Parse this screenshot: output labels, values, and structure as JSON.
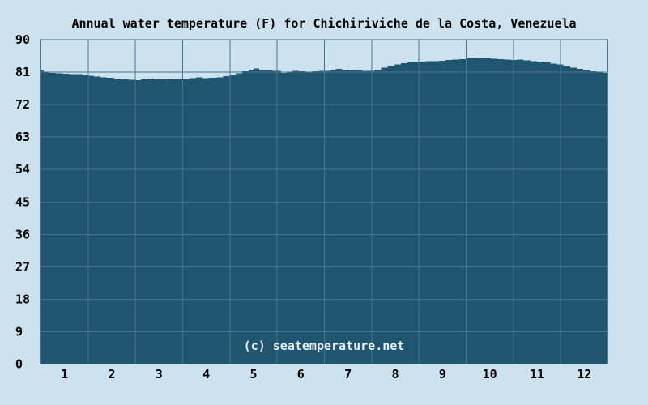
{
  "chart_data": {
    "type": "area",
    "title": "Annual water temperature (F) for Chichiriviche de la Costa, Venezuela",
    "watermark": "(c) seatemperature.net",
    "xlabel": "",
    "ylabel": "",
    "x_tick_labels": [
      "1",
      "2",
      "3",
      "4",
      "5",
      "6",
      "7",
      "8",
      "9",
      "10",
      "11",
      "12"
    ],
    "y_ticks": [
      0,
      9,
      18,
      27,
      36,
      45,
      54,
      63,
      72,
      81,
      90
    ],
    "xlim_months": [
      0,
      12
    ],
    "ylim": [
      0,
      90
    ],
    "grid": true,
    "legend": false,
    "series": [
      {
        "name": "Water temperature (F)",
        "points": [
          [
            0.0,
            81.5
          ],
          [
            0.06,
            81.0
          ],
          [
            0.18,
            80.8
          ],
          [
            0.32,
            80.7
          ],
          [
            0.46,
            80.6
          ],
          [
            0.6,
            80.5
          ],
          [
            0.74,
            80.4
          ],
          [
            0.88,
            80.2
          ],
          [
            1.0,
            80.0
          ],
          [
            1.12,
            79.8
          ],
          [
            1.26,
            79.6
          ],
          [
            1.4,
            79.4
          ],
          [
            1.55,
            79.2
          ],
          [
            1.7,
            79.0
          ],
          [
            1.85,
            78.9
          ],
          [
            2.0,
            78.8
          ],
          [
            2.12,
            79.0
          ],
          [
            2.26,
            79.2
          ],
          [
            2.4,
            79.0
          ],
          [
            2.54,
            79.0
          ],
          [
            2.68,
            79.1
          ],
          [
            2.82,
            79.0
          ],
          [
            3.0,
            79.0
          ],
          [
            3.14,
            79.3
          ],
          [
            3.28,
            79.5
          ],
          [
            3.42,
            79.3
          ],
          [
            3.56,
            79.4
          ],
          [
            3.72,
            79.6
          ],
          [
            3.86,
            79.9
          ],
          [
            4.0,
            80.2
          ],
          [
            4.12,
            80.7
          ],
          [
            4.26,
            81.2
          ],
          [
            4.4,
            81.7
          ],
          [
            4.5,
            82.0
          ],
          [
            4.62,
            81.7
          ],
          [
            4.76,
            81.5
          ],
          [
            4.9,
            81.4
          ],
          [
            5.0,
            81.3
          ],
          [
            5.08,
            80.8
          ],
          [
            5.2,
            81.0
          ],
          [
            5.32,
            81.3
          ],
          [
            5.46,
            81.2
          ],
          [
            5.6,
            81.1
          ],
          [
            5.74,
            81.2
          ],
          [
            5.88,
            81.3
          ],
          [
            6.0,
            81.4
          ],
          [
            6.12,
            81.7
          ],
          [
            6.24,
            81.9
          ],
          [
            6.38,
            81.7
          ],
          [
            6.52,
            81.5
          ],
          [
            6.66,
            81.5
          ],
          [
            6.8,
            81.4
          ],
          [
            6.94,
            81.3
          ],
          [
            7.06,
            81.7
          ],
          [
            7.2,
            82.3
          ],
          [
            7.34,
            82.8
          ],
          [
            7.48,
            83.2
          ],
          [
            7.62,
            83.5
          ],
          [
            7.76,
            83.7
          ],
          [
            7.9,
            83.8
          ],
          [
            8.0,
            83.9
          ],
          [
            8.14,
            84.0
          ],
          [
            8.28,
            84.1
          ],
          [
            8.42,
            84.2
          ],
          [
            8.56,
            84.4
          ],
          [
            8.7,
            84.5
          ],
          [
            8.85,
            84.6
          ],
          [
            9.0,
            84.8
          ],
          [
            9.1,
            85.1
          ],
          [
            9.24,
            84.9
          ],
          [
            9.38,
            84.8
          ],
          [
            9.52,
            84.7
          ],
          [
            9.66,
            84.6
          ],
          [
            9.8,
            84.5
          ],
          [
            9.94,
            84.4
          ],
          [
            10.08,
            84.5
          ],
          [
            10.22,
            84.3
          ],
          [
            10.36,
            84.1
          ],
          [
            10.5,
            83.9
          ],
          [
            10.64,
            83.7
          ],
          [
            10.78,
            83.4
          ],
          [
            10.92,
            83.1
          ],
          [
            11.06,
            82.7
          ],
          [
            11.2,
            82.3
          ],
          [
            11.34,
            81.9
          ],
          [
            11.48,
            81.5
          ],
          [
            11.62,
            81.2
          ],
          [
            11.76,
            80.9
          ],
          [
            11.9,
            80.8
          ],
          [
            12.0,
            80.8
          ]
        ]
      }
    ],
    "colors": {
      "background": "#cde2ef",
      "area_fill": "#20556f",
      "grid_line": "#4c7490",
      "text": "#000000",
      "watermark_text": "#e6eff7"
    }
  }
}
